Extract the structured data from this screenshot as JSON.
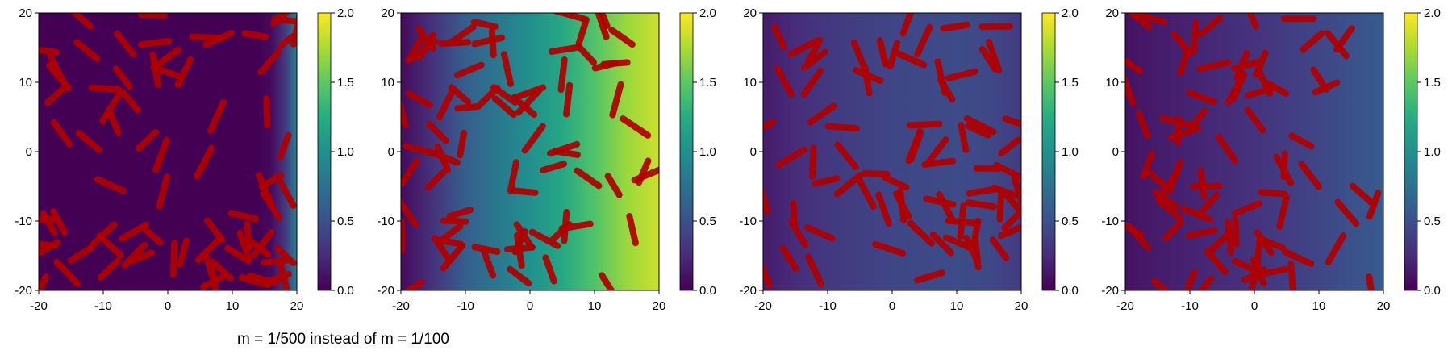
{
  "caption": "m = 1/500 instead of m = 1/100",
  "chart_data": [
    {
      "type": "heatmap",
      "title": "",
      "xlabel": "",
      "ylabel": "",
      "xlim": [
        -20,
        20
      ],
      "ylim": [
        -20,
        20
      ],
      "xticks": [
        -20,
        -10,
        0,
        10,
        20
      ],
      "yticks": [
        -20,
        -10,
        0,
        10,
        20
      ],
      "colorbar": {
        "range": [
          0.0,
          2.0
        ],
        "ticks": [
          "0.0",
          "0.5",
          "1.0",
          "1.5",
          "2.0"
        ],
        "colormap": "viridis"
      },
      "field_profile_x": [
        [
          -20,
          0.0
        ],
        [
          14,
          0.0
        ],
        [
          16,
          0.05
        ],
        [
          18,
          0.3
        ],
        [
          20,
          0.85
        ]
      ],
      "rod_color": "#b00000",
      "rod_count": 75
    },
    {
      "type": "heatmap",
      "title": "",
      "xlabel": "",
      "ylabel": "",
      "xlim": [
        -20,
        20
      ],
      "ylim": [
        -20,
        20
      ],
      "xticks": [
        -20,
        -10,
        0,
        10,
        20
      ],
      "yticks": [
        -20,
        -10,
        0,
        10,
        20
      ],
      "colorbar": {
        "range": [
          0.0,
          2.0
        ],
        "ticks": [
          "0.0",
          "0.5",
          "1.0",
          "1.5",
          "2.0"
        ],
        "colormap": "viridis"
      },
      "field_profile_x": [
        [
          -20,
          0.05
        ],
        [
          -15,
          0.3
        ],
        [
          -10,
          0.6
        ],
        [
          -5,
          0.8
        ],
        [
          0,
          1.0
        ],
        [
          5,
          1.2
        ],
        [
          10,
          1.45
        ],
        [
          15,
          1.7
        ],
        [
          20,
          1.85
        ]
      ],
      "rod_color": "#b00000",
      "rod_count": 75
    },
    {
      "type": "heatmap",
      "title": "",
      "xlabel": "",
      "ylabel": "",
      "xlim": [
        -20,
        20
      ],
      "ylim": [
        -20,
        20
      ],
      "xticks": [
        -20,
        -10,
        0,
        10,
        20
      ],
      "yticks": [
        -20,
        -10,
        0,
        10,
        20
      ],
      "colorbar": {
        "range": [
          0.0,
          2.0
        ],
        "ticks": [
          "0.0",
          "0.5",
          "1.0",
          "1.5",
          "2.0"
        ],
        "colormap": "viridis"
      },
      "field_profile_x": [
        [
          -20,
          0.15
        ],
        [
          -15,
          0.25
        ],
        [
          -10,
          0.33
        ],
        [
          0,
          0.42
        ],
        [
          10,
          0.46
        ],
        [
          15,
          0.44
        ],
        [
          20,
          0.35
        ]
      ],
      "rod_color": "#b00000",
      "rod_count": 75
    },
    {
      "type": "heatmap",
      "title": "",
      "xlabel": "",
      "ylabel": "",
      "xlim": [
        -20,
        20
      ],
      "ylim": [
        -20,
        20
      ],
      "xticks": [
        -20,
        -10,
        0,
        10,
        20
      ],
      "yticks": [
        -20,
        -10,
        0,
        10,
        20
      ],
      "colorbar": {
        "range": [
          0.0,
          2.0
        ],
        "ticks": [
          "0.0",
          "0.5",
          "1.0",
          "1.5",
          "2.0"
        ],
        "colormap": "viridis"
      },
      "field_profile_x": [
        [
          -20,
          0.1
        ],
        [
          -15,
          0.15
        ],
        [
          -10,
          0.2
        ],
        [
          0,
          0.3
        ],
        [
          10,
          0.42
        ],
        [
          15,
          0.5
        ],
        [
          20,
          0.58
        ]
      ],
      "rod_color": "#b00000",
      "rod_count": 75
    }
  ]
}
